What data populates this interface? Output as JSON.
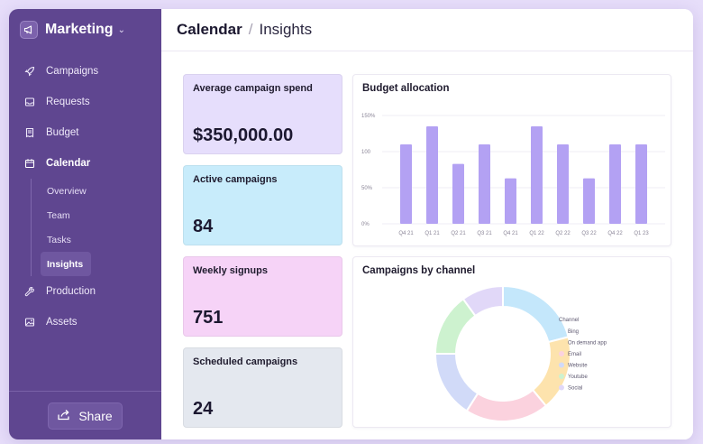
{
  "app": {
    "workspace": "Marketing"
  },
  "sidebar": {
    "items": [
      {
        "label": "Campaigns",
        "icon": "rocket-icon"
      },
      {
        "label": "Requests",
        "icon": "inbox-icon"
      },
      {
        "label": "Budget",
        "icon": "receipt-icon"
      },
      {
        "label": "Calendar",
        "icon": "calendar-icon"
      }
    ],
    "subitems": [
      "Overview",
      "Team",
      "Tasks",
      "Insights"
    ],
    "items_after": [
      {
        "label": "Production",
        "icon": "wrench-icon"
      },
      {
        "label": "Assets",
        "icon": "image-icon"
      }
    ],
    "share_label": "Share"
  },
  "breadcrumb": {
    "section": "Calendar",
    "separator": "/",
    "page": "Insights"
  },
  "stats": [
    {
      "title": "Average campaign spend",
      "value": "$350,000.00",
      "color": "#e6defc"
    },
    {
      "title": "Active campaigns",
      "value": "84",
      "color": "#c8ecfb"
    },
    {
      "title": "Weekly signups",
      "value": "751",
      "color": "#f6d3f7"
    },
    {
      "title": "Scheduled campaigns",
      "value": "24",
      "color": "#e4e8ef"
    }
  ],
  "panels": {
    "budget_title": "Budget allocation",
    "channel_title": "Campaigns by channel"
  },
  "colors": {
    "sidebar": "#5f4690",
    "bar": "#b3a1f3"
  },
  "chart_data": [
    {
      "type": "bar",
      "title": "Budget allocation",
      "categories": [
        "Q4 21",
        "Q1 21",
        "Q2 21",
        "Q3 21",
        "Q4 21",
        "Q1 22",
        "Q2 22",
        "Q3 22",
        "Q4 22",
        "Q1 23"
      ],
      "values": [
        110,
        135,
        83,
        110,
        63,
        135,
        110,
        63,
        110,
        110
      ],
      "yticks": [
        "150%",
        "100",
        "50%",
        "0%"
      ],
      "ylim": [
        0,
        150
      ],
      "grid": true
    },
    {
      "type": "pie",
      "title": "Campaigns by channel",
      "legend_title": "Channel",
      "legend_position": "right",
      "labels": [
        "Bing",
        "On demand app",
        "Email",
        "Website",
        "Youtube",
        "Social"
      ],
      "values": [
        21,
        18,
        20,
        16,
        15,
        10
      ],
      "colors": [
        "#c4e7fb",
        "#fde3ad",
        "#fbd2de",
        "#d1daf8",
        "#cdf2cf",
        "#e1d8f8"
      ]
    }
  ]
}
